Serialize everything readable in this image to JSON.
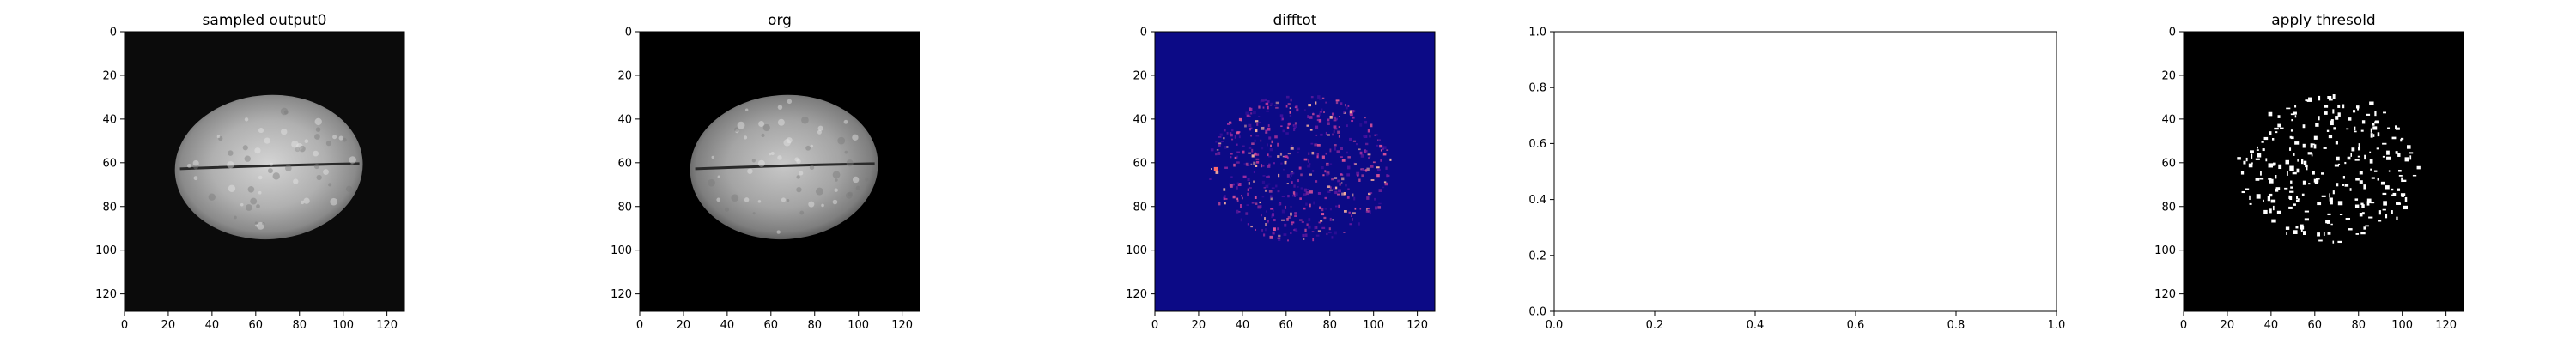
{
  "colors": {
    "image_bg": "#000000",
    "diff_bg": "#0c0a86",
    "axes_edge": "#000000",
    "empty_bg": "#ffffff"
  },
  "panels": [
    {
      "title": "sampled output0",
      "kind": "brain-image",
      "x_ticks": [
        "0",
        "20",
        "40",
        "60",
        "80",
        "100",
        "120"
      ],
      "y_ticks": [
        "0",
        "20",
        "40",
        "60",
        "80",
        "100",
        "120"
      ]
    },
    {
      "title": "org",
      "kind": "brain-image",
      "x_ticks": [
        "0",
        "20",
        "40",
        "60",
        "80",
        "100",
        "120"
      ],
      "y_ticks": [
        "0",
        "20",
        "40",
        "60",
        "80",
        "100",
        "120"
      ]
    },
    {
      "title": "difftot",
      "kind": "difference-map",
      "x_ticks": [
        "0",
        "20",
        "40",
        "60",
        "80",
        "100",
        "120"
      ],
      "y_ticks": [
        "0",
        "20",
        "40",
        "60",
        "80",
        "100",
        "120"
      ]
    },
    {
      "title": "",
      "kind": "empty-axes",
      "x_ticks": [
        "0.0",
        "0.2",
        "0.4",
        "0.6",
        "0.8",
        "1.0"
      ],
      "y_ticks": [
        "0.0",
        "0.2",
        "0.4",
        "0.6",
        "0.8",
        "1.0"
      ]
    },
    {
      "title": "apply thresold",
      "kind": "threshold-mask",
      "x_ticks": [
        "0",
        "20",
        "40",
        "60",
        "80",
        "100",
        "120"
      ],
      "y_ticks": [
        "0",
        "20",
        "40",
        "60",
        "80",
        "100",
        "120"
      ]
    }
  ]
}
